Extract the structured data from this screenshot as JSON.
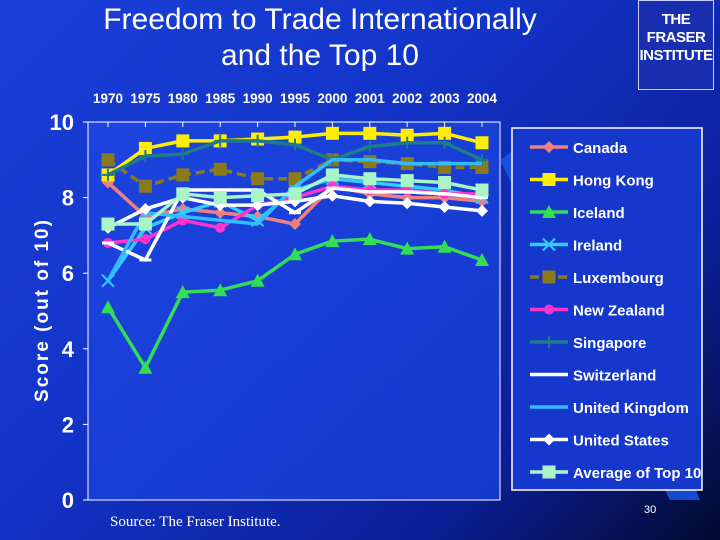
{
  "slide": {
    "title_line1": "Freedom to Trade Internationally",
    "title_line2": "and the Top 10",
    "logo_line1": "THE FRASER",
    "logo_line2": "INSTITUTE",
    "source": "Source: The Fraser Institute.",
    "page_number": "30"
  },
  "chart_data": {
    "type": "line",
    "title": "",
    "xlabel": "",
    "ylabel": "Score (out of 10)",
    "categories": [
      "1970",
      "1975",
      "1980",
      "1985",
      "1990",
      "1995",
      "2000",
      "2001",
      "2002",
      "2003",
      "2004"
    ],
    "ylim": [
      0,
      10
    ],
    "yticks": [
      0,
      2,
      4,
      6,
      8,
      10
    ],
    "legend_position": "right",
    "plot_background": "#ffffff",
    "series": [
      {
        "name": "Canada",
        "color": "#f08080",
        "marker": "diamond",
        "dash": "",
        "values": [
          8.4,
          7.5,
          7.7,
          7.6,
          7.5,
          7.3,
          8.3,
          8.1,
          8.0,
          8.0,
          7.9
        ]
      },
      {
        "name": "Hong Kong",
        "color": "#ffee00",
        "marker": "square",
        "dash": "",
        "values": [
          8.6,
          9.3,
          9.5,
          9.5,
          9.55,
          9.6,
          9.7,
          9.7,
          9.65,
          9.7,
          9.45
        ]
      },
      {
        "name": "Iceland",
        "color": "#33dd55",
        "marker": "triangle",
        "dash": "",
        "values": [
          5.1,
          3.5,
          5.5,
          5.55,
          5.8,
          6.5,
          6.85,
          6.9,
          6.65,
          6.7,
          6.35
        ]
      },
      {
        "name": "Ireland",
        "color": "#33ccff",
        "marker": "x",
        "dash": "",
        "values": [
          5.8,
          7.2,
          7.6,
          7.9,
          7.4,
          8.2,
          8.5,
          8.4,
          8.3,
          8.2,
          8.0
        ]
      },
      {
        "name": "Luxembourg",
        "color": "#8a7a1c",
        "marker": "square",
        "dash": "9,5",
        "values": [
          9.0,
          8.3,
          8.6,
          8.75,
          8.5,
          8.5,
          9.0,
          8.95,
          8.9,
          8.8,
          8.8
        ]
      },
      {
        "name": "New Zealand",
        "color": "#ff33cc",
        "marker": "circle",
        "dash": "",
        "values": [
          6.8,
          6.9,
          7.4,
          7.2,
          7.8,
          8.0,
          8.3,
          8.2,
          8.2,
          8.1,
          8.1
        ]
      },
      {
        "name": "Singapore",
        "color": "#1f7a8c",
        "marker": "plus",
        "dash": "",
        "values": [
          8.6,
          9.1,
          9.15,
          9.5,
          9.5,
          9.4,
          9.0,
          9.35,
          9.45,
          9.45,
          9.0
        ]
      },
      {
        "name": "Switzerland",
        "color": "#ffffff",
        "marker": "dash",
        "dash": "",
        "values": [
          6.8,
          6.35,
          8.2,
          8.2,
          8.2,
          7.6,
          8.25,
          8.15,
          8.15,
          8.1,
          8.0
        ]
      },
      {
        "name": "United Kingdom",
        "color": "#33bbff",
        "marker": "none",
        "dash": "",
        "values": [
          5.8,
          7.6,
          7.5,
          7.4,
          7.3,
          8.3,
          9.0,
          9.0,
          8.9,
          8.9,
          8.9
        ]
      },
      {
        "name": "United States",
        "color": "#ffffff",
        "marker": "diamond",
        "dash": "",
        "values": [
          7.2,
          7.7,
          8.0,
          7.8,
          7.8,
          7.9,
          8.05,
          7.9,
          7.85,
          7.75,
          7.65
        ]
      },
      {
        "name": "Average of Top 10",
        "color": "#a9f5c8",
        "marker": "square",
        "dash": "",
        "values": [
          7.3,
          7.3,
          8.1,
          8.0,
          8.05,
          8.1,
          8.6,
          8.5,
          8.45,
          8.4,
          8.2
        ]
      }
    ]
  }
}
